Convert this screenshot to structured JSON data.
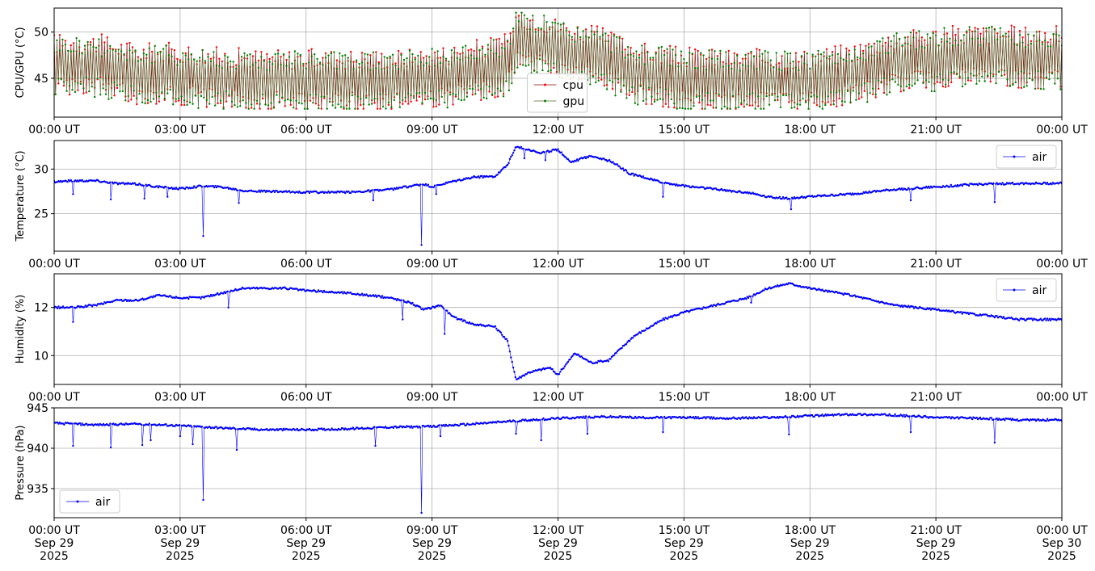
{
  "chart_data": [
    {
      "type": "line",
      "ylabel": "CPU/GPU (°C)",
      "ylim": [
        40.8,
        52.6
      ],
      "yticks": [
        45,
        50
      ],
      "xlim": [
        "00:00",
        "24:00"
      ],
      "x_tick_labels": [
        "00:00 UT",
        "03:00 UT",
        "06:00 UT",
        "09:00 UT",
        "12:00 UT",
        "15:00 UT",
        "18:00 UT",
        "21:00 UT",
        "00:00 UT"
      ],
      "grid": true,
      "legend_position": "bottom-center",
      "series": [
        {
          "name": "cpu",
          "color": "#ff0000",
          "line_color": "#8b0000",
          "marker": "point",
          "baseline": [
            [
              0,
              46.5
            ],
            [
              1,
              46.5
            ],
            [
              2,
              45.5
            ],
            [
              3,
              45.5
            ],
            [
              4,
              45
            ],
            [
              5,
              44.8
            ],
            [
              6,
              44.8
            ],
            [
              7,
              44.8
            ],
            [
              8,
              44.8
            ],
            [
              9,
              45
            ],
            [
              10,
              45.8
            ],
            [
              10.8,
              46.5
            ],
            [
              11,
              49.2
            ],
            [
              11.5,
              49
            ],
            [
              12,
              48.2
            ],
            [
              13,
              47.2
            ],
            [
              14,
              45.5
            ],
            [
              15,
              45
            ],
            [
              16,
              44.8
            ],
            [
              17,
              44.8
            ],
            [
              18,
              44.8
            ],
            [
              19,
              45.5
            ],
            [
              20,
              46.8
            ],
            [
              21,
              47.2
            ],
            [
              22,
              47.5
            ],
            [
              23,
              47.3
            ],
            [
              24,
              47.3
            ]
          ],
          "swing_amplitude": 4
        },
        {
          "name": "gpu",
          "color": "#008000",
          "line_color": "#556b2f",
          "marker": "point",
          "baseline": [
            [
              0,
              46.3
            ],
            [
              1,
              46.3
            ],
            [
              2,
              45.3
            ],
            [
              3,
              45.2
            ],
            [
              4,
              44.8
            ],
            [
              5,
              44.6
            ],
            [
              6,
              44.6
            ],
            [
              7,
              44.6
            ],
            [
              8,
              44.6
            ],
            [
              9,
              44.8
            ],
            [
              10,
              45.6
            ],
            [
              10.8,
              46.3
            ],
            [
              11,
              49
            ],
            [
              11.5,
              48.8
            ],
            [
              12,
              48
            ],
            [
              13,
              47
            ],
            [
              14,
              45.3
            ],
            [
              15,
              44.8
            ],
            [
              16,
              44.6
            ],
            [
              17,
              44.6
            ],
            [
              18,
              44.6
            ],
            [
              19,
              45.3
            ],
            [
              20,
              46.6
            ],
            [
              21,
              47
            ],
            [
              22,
              47.3
            ],
            [
              23,
              47.1
            ],
            [
              24,
              47.1
            ]
          ],
          "swing_amplitude": 4
        }
      ]
    },
    {
      "type": "line",
      "ylabel": "Temperature (°C)",
      "ylim": [
        20.8,
        33.2
      ],
      "yticks": [
        25,
        30
      ],
      "xlim": [
        "00:00",
        "24:00"
      ],
      "x_tick_labels": [
        "00:00 UT",
        "03:00 UT",
        "06:00 UT",
        "09:00 UT",
        "12:00 UT",
        "15:00 UT",
        "18:00 UT",
        "21:00 UT",
        "00:00 UT"
      ],
      "grid": true,
      "legend_position": "top-right",
      "series": [
        {
          "name": "air",
          "color": "#0000ff",
          "values": [
            [
              0,
              28.6
            ],
            [
              0.5,
              28.7
            ],
            [
              1,
              28.7
            ],
            [
              1.5,
              28.4
            ],
            [
              2,
              28.3
            ],
            [
              2.5,
              28.0
            ],
            [
              3,
              27.8
            ],
            [
              3.5,
              28.1
            ],
            [
              4,
              28.0
            ],
            [
              4.5,
              27.6
            ],
            [
              5,
              27.5
            ],
            [
              6,
              27.4
            ],
            [
              7,
              27.4
            ],
            [
              8,
              27.7
            ],
            [
              8.5,
              28.1
            ],
            [
              8.8,
              28.3
            ],
            [
              9,
              28.0
            ],
            [
              9.5,
              28.6
            ],
            [
              10,
              29.1
            ],
            [
              10.5,
              29.2
            ],
            [
              10.8,
              30.5
            ],
            [
              11,
              32.5
            ],
            [
              11.3,
              32.2
            ],
            [
              11.6,
              31.8
            ],
            [
              12,
              32.2
            ],
            [
              12.3,
              30.8
            ],
            [
              12.8,
              31.5
            ],
            [
              13.3,
              30.8
            ],
            [
              13.7,
              29.5
            ],
            [
              14.5,
              28.5
            ],
            [
              15,
              28.1
            ],
            [
              15.5,
              27.9
            ],
            [
              16,
              27.6
            ],
            [
              16.5,
              27.4
            ],
            [
              17,
              26.9
            ],
            [
              17.5,
              26.7
            ],
            [
              18,
              26.9
            ],
            [
              19,
              27.2
            ],
            [
              20,
              27.7
            ],
            [
              21,
              28.0
            ],
            [
              22,
              28.3
            ],
            [
              23,
              28.4
            ],
            [
              24,
              28.4
            ]
          ],
          "spikes": [
            [
              0.45,
              27.2
            ],
            [
              1.35,
              26.6
            ],
            [
              2.15,
              26.7
            ],
            [
              2.7,
              26.9
            ],
            [
              3.55,
              22.5
            ],
            [
              4.4,
              26.2
            ],
            [
              7.6,
              26.5
            ],
            [
              8.75,
              21.5
            ],
            [
              9.1,
              27.2
            ],
            [
              11.2,
              31.2
            ],
            [
              11.7,
              31.0
            ],
            [
              14.5,
              26.9
            ],
            [
              17.55,
              25.5
            ],
            [
              20.4,
              26.5
            ],
            [
              22.4,
              26.3
            ]
          ]
        }
      ]
    },
    {
      "type": "line",
      "ylabel": "Humidity (%)",
      "ylim": [
        8.8,
        13.4
      ],
      "yticks": [
        10,
        12
      ],
      "xlim": [
        "00:00",
        "24:00"
      ],
      "x_tick_labels": [
        "00:00 UT",
        "03:00 UT",
        "06:00 UT",
        "09:00 UT",
        "12:00 UT",
        "15:00 UT",
        "18:00 UT",
        "21:00 UT",
        "00:00 UT"
      ],
      "grid": true,
      "legend_position": "top-right",
      "series": [
        {
          "name": "air",
          "color": "#0000ff",
          "values": [
            [
              0,
              12.0
            ],
            [
              0.5,
              12.0
            ],
            [
              1,
              12.1
            ],
            [
              1.5,
              12.3
            ],
            [
              2,
              12.3
            ],
            [
              2.5,
              12.5
            ],
            [
              3,
              12.4
            ],
            [
              3.5,
              12.4
            ],
            [
              4,
              12.6
            ],
            [
              4.5,
              12.8
            ],
            [
              5,
              12.8
            ],
            [
              5.5,
              12.8
            ],
            [
              6,
              12.7
            ],
            [
              7,
              12.6
            ],
            [
              8,
              12.4
            ],
            [
              8.5,
              12.2
            ],
            [
              8.8,
              11.9
            ],
            [
              9.2,
              12.1
            ],
            [
              9.5,
              11.6
            ],
            [
              10,
              11.3
            ],
            [
              10.5,
              11.2
            ],
            [
              10.8,
              10.6
            ],
            [
              11,
              9.0
            ],
            [
              11.3,
              9.3
            ],
            [
              11.8,
              9.5
            ],
            [
              12,
              9.2
            ],
            [
              12.4,
              10.1
            ],
            [
              12.8,
              9.7
            ],
            [
              13.2,
              9.8
            ],
            [
              13.8,
              10.8
            ],
            [
              14.5,
              11.5
            ],
            [
              15,
              11.8
            ],
            [
              16,
              12.2
            ],
            [
              16.5,
              12.4
            ],
            [
              17,
              12.8
            ],
            [
              17.5,
              13.0
            ],
            [
              18,
              12.8
            ],
            [
              19,
              12.5
            ],
            [
              20,
              12.1
            ],
            [
              21,
              11.9
            ],
            [
              22,
              11.7
            ],
            [
              23,
              11.5
            ],
            [
              24,
              11.5
            ]
          ],
          "spikes": [
            [
              0.45,
              11.4
            ],
            [
              4.15,
              12.0
            ],
            [
              8.3,
              11.5
            ],
            [
              9.3,
              10.9
            ],
            [
              16.6,
              12.2
            ]
          ]
        }
      ]
    },
    {
      "type": "line",
      "ylabel": "Pressure (hPa)",
      "ylim": [
        931.4,
        945.0
      ],
      "yticks": [
        935,
        940,
        945
      ],
      "xlim": [
        "2025-09-29T00:00",
        "2025-09-30T00:00"
      ],
      "x_tick_labels": [
        [
          "00:00 UT",
          "Sep 29",
          "2025"
        ],
        [
          "03:00 UT",
          "Sep 29",
          "2025"
        ],
        [
          "06:00 UT",
          "Sep 29",
          "2025"
        ],
        [
          "09:00 UT",
          "Sep 29",
          "2025"
        ],
        [
          "12:00 UT",
          "Sep 29",
          "2025"
        ],
        [
          "15:00 UT",
          "Sep 29",
          "2025"
        ],
        [
          "18:00 UT",
          "Sep 29",
          "2025"
        ],
        [
          "21:00 UT",
          "Sep 29",
          "2025"
        ],
        [
          "00:00 UT",
          "Sep 30",
          "2025"
        ]
      ],
      "grid": true,
      "legend_position": "bottom-left",
      "series": [
        {
          "name": "air",
          "color": "#0000ff",
          "values": [
            [
              0,
              943.1
            ],
            [
              1,
              942.9
            ],
            [
              2,
              943.0
            ],
            [
              3,
              942.8
            ],
            [
              4,
              942.5
            ],
            [
              5,
              942.3
            ],
            [
              6,
              942.3
            ],
            [
              7,
              942.4
            ],
            [
              8,
              942.6
            ],
            [
              9,
              942.7
            ],
            [
              10,
              943.0
            ],
            [
              11,
              943.4
            ],
            [
              12,
              943.7
            ],
            [
              13,
              943.9
            ],
            [
              14,
              943.8
            ],
            [
              15,
              943.8
            ],
            [
              16,
              943.7
            ],
            [
              17,
              943.8
            ],
            [
              18,
              944.0
            ],
            [
              19,
              944.2
            ],
            [
              20,
              944.1
            ],
            [
              21,
              943.8
            ],
            [
              22,
              943.7
            ],
            [
              23,
              943.5
            ],
            [
              24,
              943.5
            ]
          ],
          "spikes": [
            [
              0.45,
              940.3
            ],
            [
              1.35,
              940.1
            ],
            [
              2.1,
              940.4
            ],
            [
              2.3,
              941.0
            ],
            [
              3.0,
              941.5
            ],
            [
              3.3,
              940.5
            ],
            [
              3.55,
              933.6
            ],
            [
              4.35,
              939.8
            ],
            [
              7.65,
              940.3
            ],
            [
              8.75,
              932.0
            ],
            [
              9.2,
              941.5
            ],
            [
              11.0,
              941.8
            ],
            [
              11.6,
              941.0
            ],
            [
              12.7,
              941.8
            ],
            [
              14.5,
              942.0
            ],
            [
              17.5,
              941.7
            ],
            [
              20.4,
              942.0
            ],
            [
              22.4,
              940.7
            ]
          ]
        }
      ]
    }
  ]
}
